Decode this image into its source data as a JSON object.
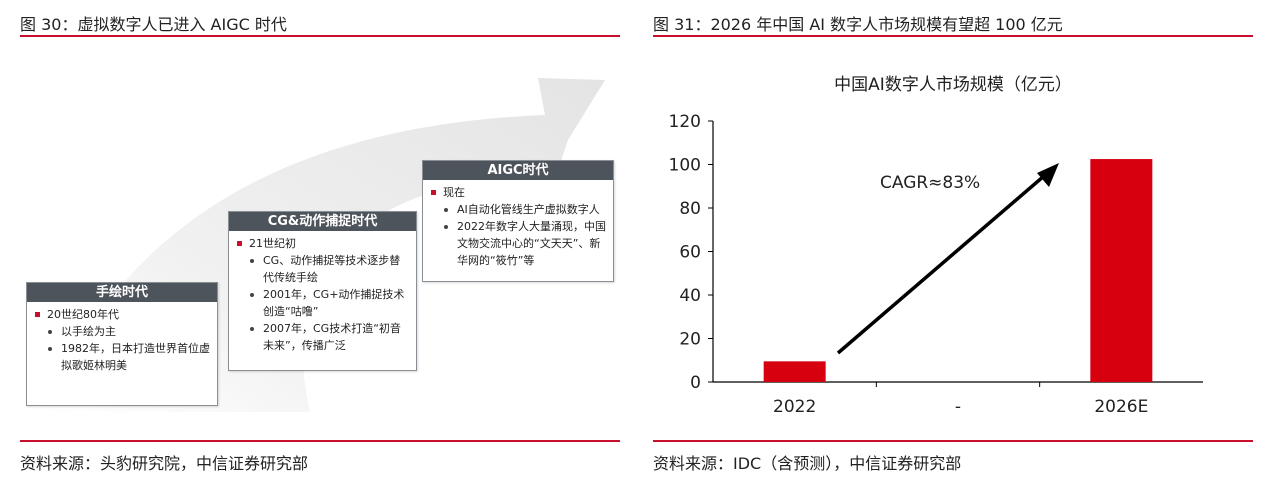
{
  "left_figure": {
    "title": "图 30：虚拟数字人已进入 AIGC 时代",
    "source": "资料来源：头豹研究院，中信证券研究部",
    "eras": [
      {
        "header": "手绘时代",
        "date": "20世纪80年代",
        "items": [
          "以手绘为主",
          "1982年，日本打造世界首位虚拟歌姬林明美"
        ]
      },
      {
        "header": "CG&动作捕捉时代",
        "date": "21世纪初",
        "items": [
          "CG、动作捕捉等技术逐步替代传统手绘",
          "2001年，CG+动作捕捉技术创造“咕噜”",
          "2007年，CG技术打造“初音未来”，传播广泛"
        ]
      },
      {
        "header": "AIGC时代",
        "date": "现在",
        "items": [
          "AI自动化管线生产虚拟数字人",
          "2022年数字人大量涌现，中国文物交流中心的“文天天”、新华网的“筱竹”等"
        ]
      }
    ],
    "colors": {
      "header_bg": "#4e545c",
      "arrow": "#e9e9e9",
      "bullet": "#c8102e"
    }
  },
  "right_figure": {
    "title": "图 31：2026 年中国 AI 数字人市场规模有望超 100 亿元",
    "source": "资料来源：IDC（含预测），中信证券研究部",
    "annotation": "CAGR≈83%"
  },
  "chart_data": {
    "type": "bar",
    "title": "中国AI数字人市场规模（亿元）",
    "categories": [
      "2022",
      "-",
      "2026E"
    ],
    "values": [
      9.5,
      0,
      102.5
    ],
    "ylim": [
      0,
      120
    ],
    "yticks": [
      "0",
      "20",
      "40",
      "60",
      "80",
      "100",
      "120"
    ],
    "grid": false,
    "legend": "none",
    "bar_color": "#d7000f"
  }
}
